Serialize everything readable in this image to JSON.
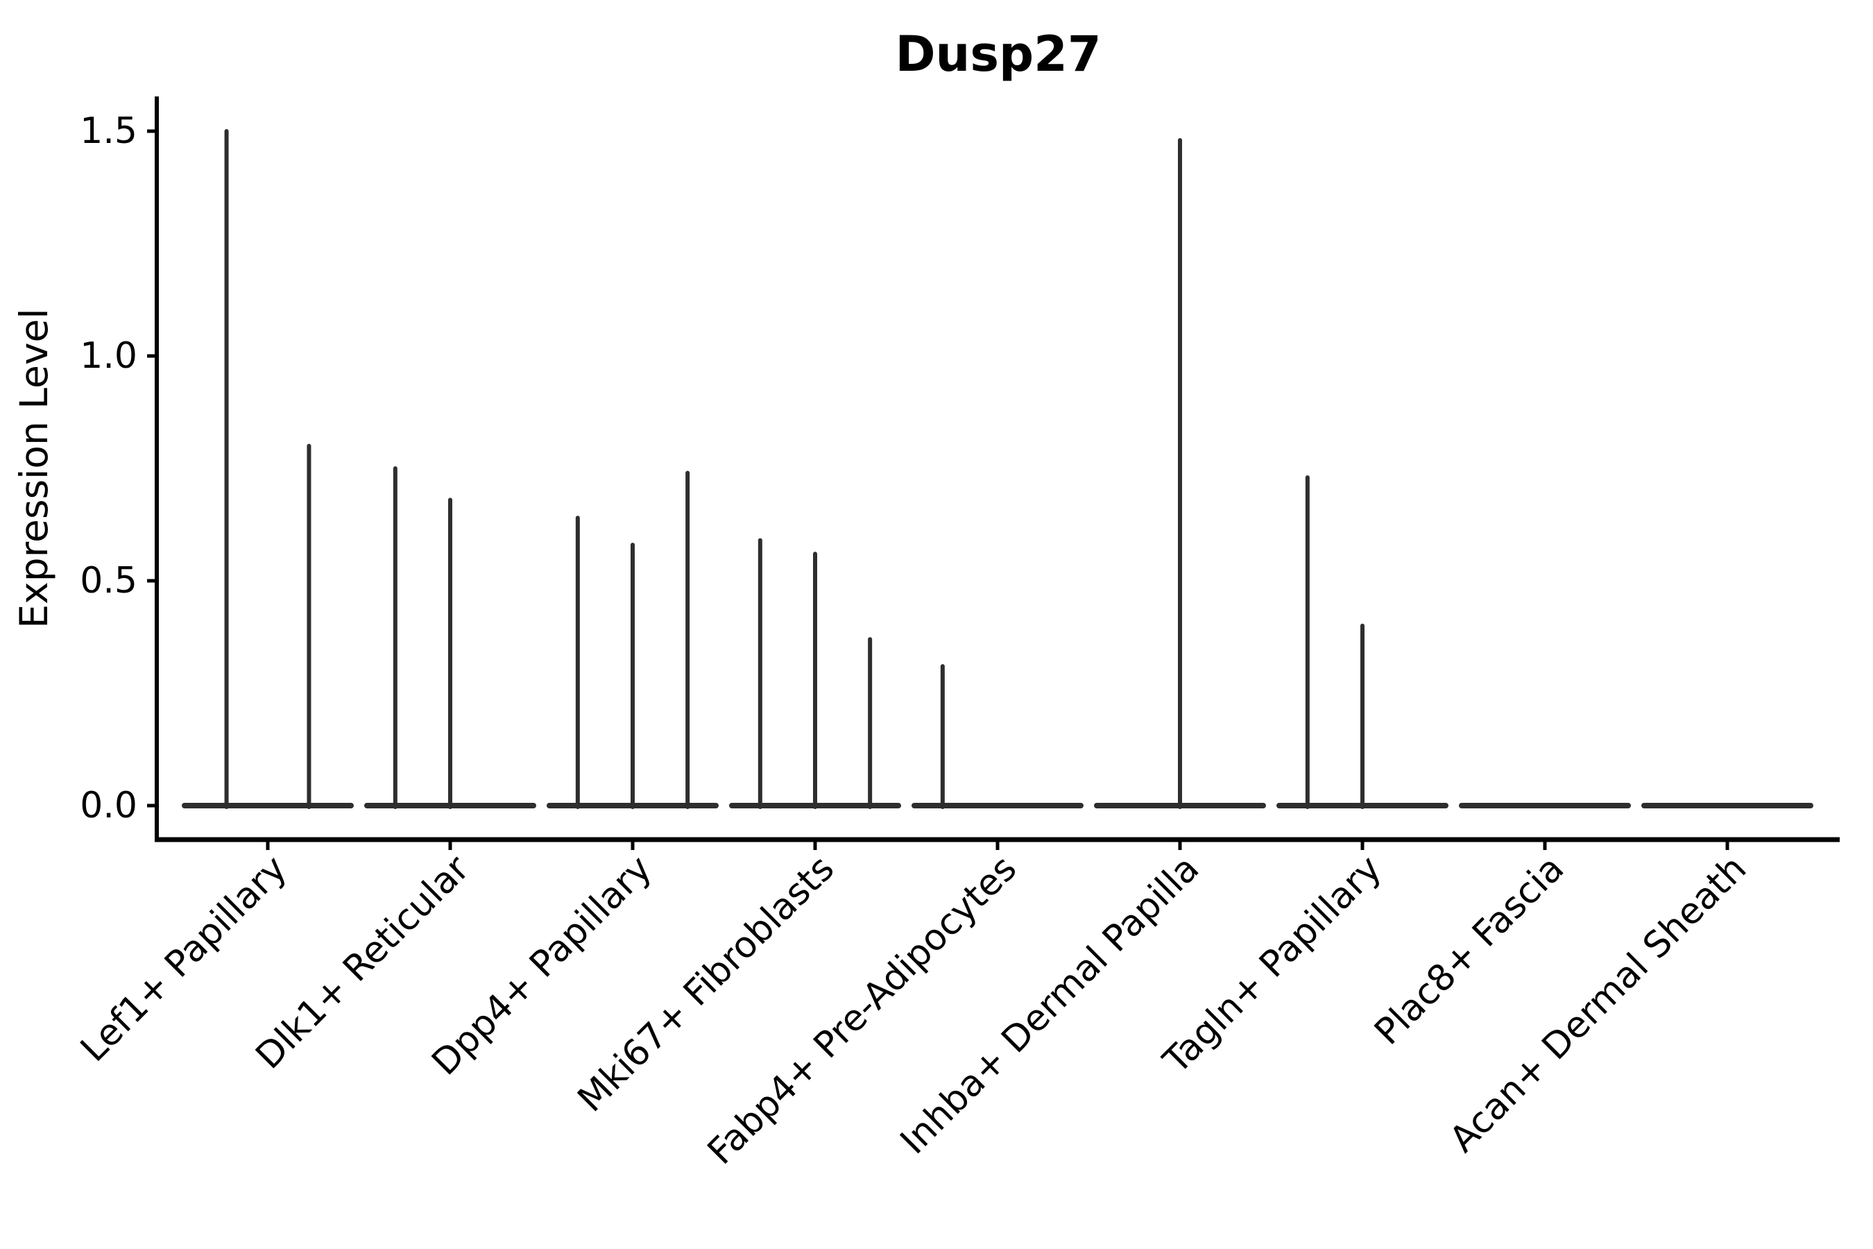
{
  "figure": {
    "title": "Dusp27"
  },
  "colors": {
    "violin_stroke": "#2e2e2e",
    "axis": "#000000",
    "text": "#000000",
    "background": "#ffffff"
  },
  "chart_data": {
    "type": "violin",
    "title": "Dusp27",
    "ylabel": "Expression Level",
    "xlabel": "",
    "grid": false,
    "legend": "none",
    "ylim": [
      -0.075,
      1.573
    ],
    "ytick_values": [
      0,
      0.5,
      1.0,
      1.5
    ],
    "yticks": [
      "0.0",
      "0.5",
      "1.0",
      "1.5"
    ],
    "categories": [
      "Lef1+ Papillary",
      "Dlk1+ Reticular",
      "Dpp4+ Papillary",
      "Mki67+ Fibroblasts",
      "Fabp4+ Pre-Adipocytes",
      "Inhba+ Dermal Papilla",
      "Tagln+ Papillary",
      "Plac8+ Fascia",
      "Acan+ Dermal Sheath"
    ],
    "violin_body": {
      "baseline_value": 0,
      "baseline_halfwidth_frac": 0.456,
      "note": "density collapsed at zero expression; thin spikes mark sparse positive cells"
    },
    "violins": [
      {
        "label": "Lef1+ Papillary",
        "spikes": [
          {
            "offset": -0.226,
            "value": 1.5
          },
          {
            "offset": 0.226,
            "value": 0.8
          }
        ]
      },
      {
        "label": "Dlk1+ Reticular",
        "spikes": [
          {
            "offset": -0.301,
            "value": 0.75
          },
          {
            "offset": 0.0,
            "value": 0.68
          }
        ]
      },
      {
        "label": "Dpp4+ Papillary",
        "spikes": [
          {
            "offset": -0.301,
            "value": 0.64
          },
          {
            "offset": 0.0,
            "value": 0.58
          },
          {
            "offset": 0.301,
            "value": 0.74
          }
        ]
      },
      {
        "label": "Mki67+ Fibroblasts",
        "spikes": [
          {
            "offset": -0.301,
            "value": 0.59
          },
          {
            "offset": 0.0,
            "value": 0.56
          },
          {
            "offset": 0.301,
            "value": 0.37
          }
        ]
      },
      {
        "label": "Fabp4+ Pre-Adipocytes",
        "spikes": [
          {
            "offset": -0.301,
            "value": 0.31
          }
        ]
      },
      {
        "label": "Inhba+ Dermal Papilla",
        "spikes": [
          {
            "offset": 0.0,
            "value": 1.48
          }
        ]
      },
      {
        "label": "Tagln+ Papillary",
        "spikes": [
          {
            "offset": -0.301,
            "value": 0.73
          },
          {
            "offset": 0.0,
            "value": 0.4
          }
        ]
      },
      {
        "label": "Plac8+ Fascia",
        "spikes": []
      },
      {
        "label": "Acan+ Dermal Sheath",
        "spikes": []
      }
    ]
  }
}
